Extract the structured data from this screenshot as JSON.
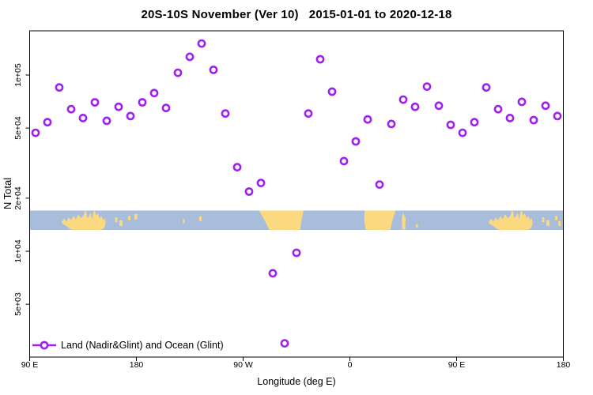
{
  "chart_data": {
    "type": "scatter",
    "title": "20S-10S November (Ver 10)   2015-01-01 to 2020-12-18",
    "xlabel": "Longitude (deg E)",
    "ylabel": "N Total",
    "y_scale": "log",
    "xlim_deg": [
      -270,
      180
    ],
    "x_ticks": [
      {
        "pos_deg": -270,
        "label": "90 E"
      },
      {
        "pos_deg": -180,
        "label": "180"
      },
      {
        "pos_deg": -90,
        "label": "90 W"
      },
      {
        "pos_deg": 0,
        "label": "0"
      },
      {
        "pos_deg": 90,
        "label": "90 E"
      },
      {
        "pos_deg": 180,
        "label": "180"
      }
    ],
    "y_ticks": [
      {
        "value": 5000,
        "label": "5e+03"
      },
      {
        "value": 10000,
        "label": "1e+04"
      },
      {
        "value": 20000,
        "label": "2e+04"
      },
      {
        "value": 50000,
        "label": "5e+04"
      },
      {
        "value": 100000,
        "label": "1e+05"
      }
    ],
    "legend": {
      "label": "Land (Nadir&Glint) and Ocean (Glint)",
      "position": "bottom-left"
    },
    "series": [
      {
        "name": "Land (Nadir&Glint) and Ocean (Glint)",
        "marker": "open-circle",
        "x_axis_deg": [
          -265,
          -255,
          -245,
          -235,
          -225,
          -215,
          -205,
          -195,
          -185,
          -175,
          -165,
          -155,
          -145,
          -135,
          -125,
          -115,
          -105,
          -95,
          -85,
          -75,
          -65,
          -55,
          -45,
          -35,
          -25,
          -15,
          -5,
          5,
          15,
          25,
          35,
          45,
          55,
          65,
          75,
          85,
          95,
          105,
          115,
          125,
          135,
          145,
          155,
          165,
          175
        ],
        "n_total": [
          47000,
          54000,
          85000,
          64000,
          57000,
          70000,
          55000,
          66000,
          58500,
          70000,
          79000,
          65000,
          103000,
          127000,
          151000,
          107000,
          60500,
          30000,
          21800,
          24400,
          7500,
          3000,
          9800,
          60500,
          123000,
          80500,
          32500,
          42000,
          56000,
          23900,
          52800,
          72500,
          66000,
          86000,
          67000,
          52200,
          47000,
          54000,
          85000,
          64000,
          57000,
          70500,
          55500,
          67000,
          58500
        ]
      }
    ],
    "map_band": {
      "description": "latitude band 20S-10S land/ocean strip",
      "land_polygons": [
        {
          "name": "australia-west-copy",
          "points": [
            [
              -243,
              0.6
            ],
            [
              -241,
              0.42
            ],
            [
              -239,
              0.58
            ],
            [
              -237,
              0.35
            ],
            [
              -235,
              0.5
            ],
            [
              -233,
              0.28
            ],
            [
              -231,
              0.45
            ],
            [
              -229,
              0.18
            ],
            [
              -227,
              0.4
            ],
            [
              -225,
              0.3
            ],
            [
              -223.5,
              0.05
            ],
            [
              -222.5,
              0
            ],
            [
              -221.5,
              0.4
            ],
            [
              -220,
              0.28
            ],
            [
              -218.5,
              0.12
            ],
            [
              -217.5,
              0.45
            ],
            [
              -216,
              0.05
            ],
            [
              -215,
              0
            ],
            [
              -214,
              0.25
            ],
            [
              -212.5,
              0.15
            ],
            [
              -211,
              0.4
            ],
            [
              -209.5,
              0.28
            ],
            [
              -208,
              0.5
            ],
            [
              -206.5,
              0.4
            ],
            [
              -206,
              0.6
            ],
            [
              -206.5,
              0.8
            ],
            [
              -208,
              0.95
            ],
            [
              -210,
              1
            ],
            [
              -234,
              1
            ],
            [
              -236,
              0.95
            ],
            [
              -239,
              0.8
            ],
            [
              -242,
              0.7
            ]
          ]
        },
        {
          "name": "south-america",
          "points": [
            [
              -76.5,
              0
            ],
            [
              -39,
              0
            ],
            [
              -40.5,
              0.4
            ],
            [
              -42,
              1
            ],
            [
              -68,
              1
            ],
            [
              -72,
              0.5
            ]
          ]
        },
        {
          "name": "africa",
          "points": [
            [
              12.5,
              0
            ],
            [
              38.5,
              0
            ],
            [
              36,
              0.5
            ],
            [
              34,
              1
            ],
            [
              13.5,
              1
            ],
            [
              12,
              0.5
            ]
          ]
        },
        {
          "name": "madagascar",
          "points": [
            [
              44.5,
              0.1
            ],
            [
              47,
              0.4
            ],
            [
              46.5,
              1
            ],
            [
              44,
              0.95
            ],
            [
              43.8,
              0.5
            ]
          ]
        },
        {
          "name": "australia-east-copy",
          "points": [
            [
              117,
              0.6
            ],
            [
              119,
              0.42
            ],
            [
              121,
              0.58
            ],
            [
              123,
              0.35
            ],
            [
              125,
              0.5
            ],
            [
              127,
              0.28
            ],
            [
              129,
              0.45
            ],
            [
              131,
              0.18
            ],
            [
              133,
              0.4
            ],
            [
              135,
              0.3
            ],
            [
              136.5,
              0.05
            ],
            [
              137.5,
              0
            ],
            [
              138.5,
              0.4
            ],
            [
              140,
              0.28
            ],
            [
              141.5,
              0.12
            ],
            [
              142.5,
              0.45
            ],
            [
              144,
              0.05
            ],
            [
              145,
              0
            ],
            [
              146,
              0.25
            ],
            [
              147.5,
              0.15
            ],
            [
              149,
              0.4
            ],
            [
              150.5,
              0.28
            ],
            [
              152,
              0.5
            ],
            [
              153.5,
              0.4
            ],
            [
              154,
              0.6
            ],
            [
              153.5,
              0.8
            ],
            [
              152,
              0.95
            ],
            [
              150,
              1
            ],
            [
              126,
              1
            ],
            [
              124,
              0.95
            ],
            [
              121,
              0.8
            ],
            [
              118,
              0.7
            ]
          ]
        }
      ],
      "islands": [
        {
          "lon": -197,
          "frac": 0.35,
          "w": 2,
          "h": 0.25
        },
        {
          "lon": -193,
          "frac": 0.5,
          "w": 2.5,
          "h": 0.3
        },
        {
          "lon": -186,
          "frac": 0.28,
          "w": 2,
          "h": 0.22
        },
        {
          "lon": -180.5,
          "frac": 0.18,
          "w": 2.5,
          "h": 0.28
        },
        {
          "lon": -140,
          "frac": 0.45,
          "w": 1.5,
          "h": 0.2
        },
        {
          "lon": -126,
          "frac": 0.3,
          "w": 2,
          "h": 0.25
        },
        {
          "lon": 56.5,
          "frac": 0.7,
          "w": 1.5,
          "h": 0.18
        },
        {
          "lon": 163,
          "frac": 0.35,
          "w": 2,
          "h": 0.25
        },
        {
          "lon": 167,
          "frac": 0.5,
          "w": 2.5,
          "h": 0.3
        },
        {
          "lon": 174,
          "frac": 0.28,
          "w": 2,
          "h": 0.22
        },
        {
          "lon": 176.8,
          "frac": 0.55,
          "w": 2,
          "h": 0.25
        }
      ]
    },
    "colors": {
      "marker": "#A020F0",
      "ocean": "#A8BCDC",
      "land": "#FBD981",
      "axis": "#000000",
      "background": "#FFFFFF"
    }
  }
}
